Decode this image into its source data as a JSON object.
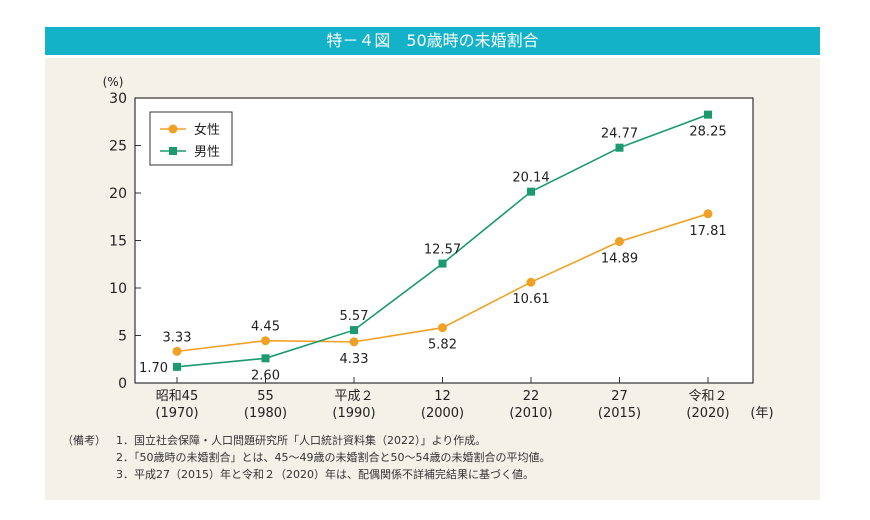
{
  "title": "特－４図　50歳時の未婚割合",
  "chart_data": {
    "type": "line",
    "title": "特－４図　50歳時の未婚割合",
    "ylabel": "(%)",
    "xunit": "(年)",
    "ylim": [
      0,
      30
    ],
    "yticks": [
      0,
      5,
      10,
      15,
      20,
      25,
      30
    ],
    "categories": [
      [
        "昭和45",
        "(1970)"
      ],
      [
        "55",
        "(1980)"
      ],
      [
        "平成２",
        "(1990)"
      ],
      [
        "12",
        "(2000)"
      ],
      [
        "22",
        "(2010)"
      ],
      [
        "27",
        "(2015)"
      ],
      [
        "令和２",
        "(2020)"
      ]
    ],
    "series": [
      {
        "name": "女性",
        "color": "#f0a125",
        "marker": "circle",
        "values": [
          3.33,
          4.45,
          4.33,
          5.82,
          10.61,
          14.89,
          17.81
        ],
        "label_pos": [
          "above",
          "above",
          "below",
          "below",
          "below",
          "below",
          "below"
        ]
      },
      {
        "name": "男性",
        "color": "#1b9a6e",
        "marker": "square",
        "values": [
          1.7,
          2.6,
          5.57,
          12.57,
          20.14,
          24.77,
          28.25
        ],
        "label_pos": [
          "left",
          "below",
          "above",
          "above",
          "above",
          "above",
          "below"
        ]
      }
    ],
    "legend": "top-left",
    "grid": false
  },
  "notes": {
    "prefix": "（備考）",
    "items": [
      "1．国立社会保障・人口問題研究所「人口統計資料集（2022）」より作成。",
      "2．「50歳時の未婚割合」とは、45～49歳の未婚割合と50～54歳の未婚割合の平均値。",
      "3．平成27（2015）年と令和２（2020）年は、配偶関係不詳補完結果に基づく値。"
    ]
  }
}
